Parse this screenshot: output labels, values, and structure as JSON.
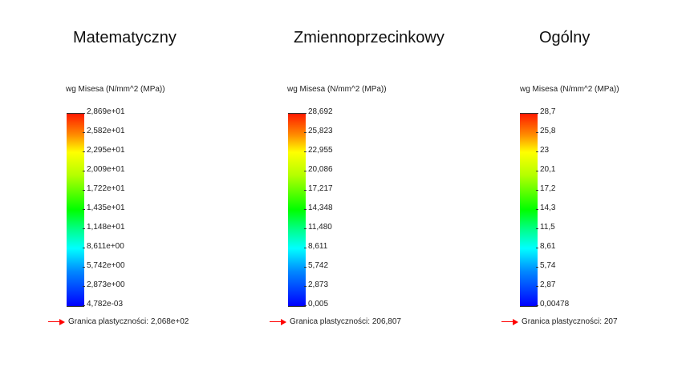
{
  "chart_data": [
    {
      "type": "heatmap",
      "title": "Matematyczny",
      "ylabel": "wg Misesa (N/mm^2 (MPa))",
      "colormap": [
        "#ff1a00",
        "#ff8c00",
        "#ffff00",
        "#b4ff00",
        "#00ff00",
        "#00ff88",
        "#00ffff",
        "#0088ff",
        "#0000ff"
      ],
      "tick_labels": [
        "2,869e+01",
        "2,582e+01",
        "2,295e+01",
        "2,009e+01",
        "1,722e+01",
        "1,435e+01",
        "1,148e+01",
        "8,611e+00",
        "5,742e+00",
        "2,873e+00",
        "4,782e-03"
      ],
      "values": [
        28.69,
        25.82,
        22.95,
        20.09,
        17.22,
        14.35,
        11.48,
        8.611,
        5.742,
        2.873,
        0.004782
      ],
      "ylim": [
        0.004782,
        28.69
      ],
      "annotation": "Granica plastyczności: 2,068e+02",
      "yield_strength": 206.8
    },
    {
      "type": "heatmap",
      "title": "Zmiennoprzecinkowy",
      "ylabel": "wg Misesa (N/mm^2 (MPa))",
      "tick_labels": [
        "28,692",
        "25,823",
        "22,955",
        "20,086",
        "17,217",
        "14,348",
        "11,480",
        "8,611",
        "5,742",
        "2,873",
        "0,005"
      ],
      "values": [
        28.692,
        25.823,
        22.955,
        20.086,
        17.217,
        14.348,
        11.48,
        8.611,
        5.742,
        2.873,
        0.005
      ],
      "ylim": [
        0.005,
        28.692
      ],
      "annotation": "Granica plastyczności: 206,807",
      "yield_strength": 206.807
    },
    {
      "type": "heatmap",
      "title": "Ogólny",
      "ylabel": "wg Misesa (N/mm^2 (MPa))",
      "tick_labels": [
        "28,7",
        "25,8",
        "23",
        "20,1",
        "17,2",
        "14,3",
        "11,5",
        "8,61",
        "5,74",
        "2,87",
        "0,00478"
      ],
      "values": [
        28.7,
        25.8,
        23,
        20.1,
        17.2,
        14.3,
        11.5,
        8.61,
        5.74,
        2.87,
        0.00478
      ],
      "ylim": [
        0.00478,
        28.7
      ],
      "annotation": "Granica plastyczności: 207",
      "yield_strength": 207
    }
  ],
  "panels": [
    {
      "title": "Matematyczny",
      "unit": "wg Misesa (N/mm^2 (MPa))",
      "ticks": [
        "2,869e+01",
        "2,582e+01",
        "2,295e+01",
        "2,009e+01",
        "1,722e+01",
        "1,435e+01",
        "1,148e+01",
        "8,611e+00",
        "5,742e+00",
        "2,873e+00",
        "4,782e-03"
      ],
      "yield": "Granica plastyczności: 2,068e+02"
    },
    {
      "title": "Zmiennoprzecinkowy",
      "unit": "wg Misesa (N/mm^2 (MPa))",
      "ticks": [
        "28,692",
        "25,823",
        "22,955",
        "20,086",
        "17,217",
        "14,348",
        "11,480",
        "8,611",
        "5,742",
        "2,873",
        "0,005"
      ],
      "yield": "Granica plastyczności: 206,807"
    },
    {
      "title": "Ogólny",
      "unit": "wg Misesa (N/mm^2 (MPa))",
      "ticks": [
        "28,7",
        "25,8",
        "23",
        "20,1",
        "17,2",
        "14,3",
        "11,5",
        "8,61",
        "5,74",
        "2,87",
        "0,00478"
      ],
      "yield": "Granica plastyczności: 207"
    }
  ]
}
